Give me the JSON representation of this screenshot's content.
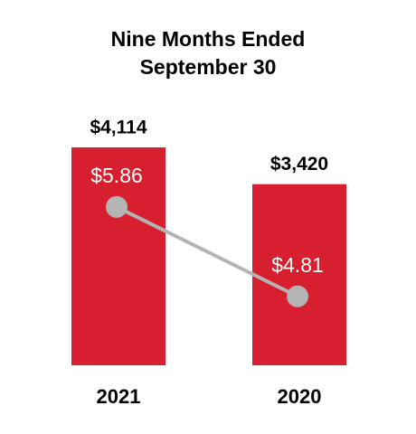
{
  "chart_data": {
    "type": "bar",
    "title": "Nine Months Ended September 30",
    "categories": [
      "2021",
      "2020"
    ],
    "series": [
      {
        "type": "bar",
        "color": "#d81f2f",
        "values": [
          4114,
          3420
        ],
        "value_labels": [
          "$4,114",
          "$3,420"
        ]
      },
      {
        "type": "line",
        "axis": "y2",
        "color": "#b4b4b4",
        "values": [
          5.86,
          4.81
        ],
        "value_labels": [
          "$5.86",
          "$4.81"
        ]
      }
    ],
    "ylim": [
      0,
      4114
    ],
    "y2lim": [
      4.0,
      6.56
    ]
  }
}
